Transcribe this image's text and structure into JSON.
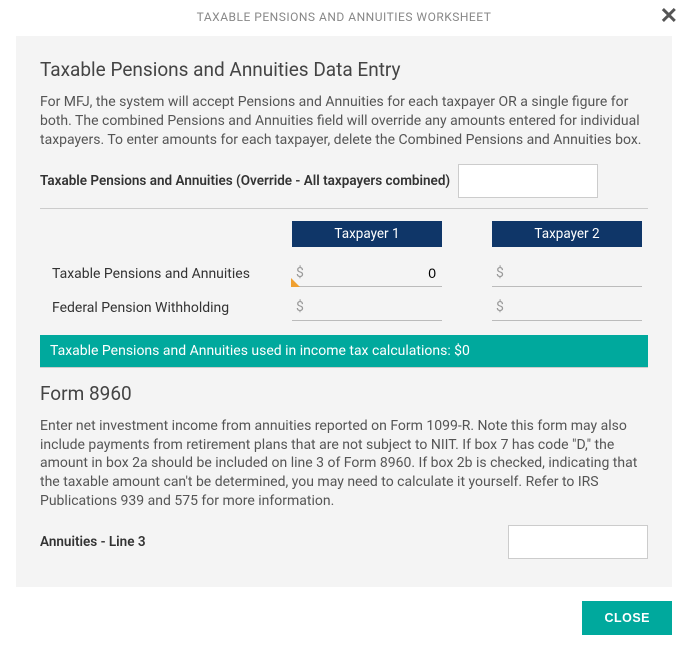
{
  "modal": {
    "title": "TAXABLE PENSIONS AND ANNUITIES WORKSHEET"
  },
  "section1": {
    "title": "Taxable Pensions and Annuities Data Entry",
    "desc": "For MFJ, the system will accept Pensions and Annuities for each taxpayer OR a single figure for both. The combined Pensions and Annuities field will override any amounts entered for individual taxpayers. To enter amounts for each taxpayer, delete the Combined Pensions and Annuities box.",
    "override_label": "Taxable Pensions and Annuities (Override - All taxpayers combined)",
    "override_value": ""
  },
  "taxpayers": {
    "tp1_label": "Taxpayer 1",
    "tp2_label": "Taxpayer 2",
    "rows": [
      {
        "label": "Taxable Pensions and Annuities",
        "tp1": "0",
        "tp2": "",
        "tp1_marked": true
      },
      {
        "label": "Federal Pension Withholding",
        "tp1": "",
        "tp2": "",
        "tp1_marked": false
      }
    ]
  },
  "calc_bar": "Taxable Pensions and Annuities used in income tax calculations: $0",
  "section2": {
    "title": "Form 8960",
    "desc": "Enter net investment income from annuities reported on Form 1099-R. Note this form may also include payments from retirement plans that are not subject to NIIT. If box 7 has code \"D,\" the amount in box 2a should be included on line 3 of Form 8960. If box 2b is checked, indicating that the taxable amount can't be determined, you may need to calculate it yourself. Refer to IRS Publications 939 and 575 for more information.",
    "line3_label": "Annuities - Line 3",
    "line3_value": ""
  },
  "close_label": "CLOSE",
  "colors": {
    "header_bg": "#0f3668",
    "accent": "#00a99d",
    "panel_bg": "#f4f4f4",
    "marker": "#f0a030"
  }
}
